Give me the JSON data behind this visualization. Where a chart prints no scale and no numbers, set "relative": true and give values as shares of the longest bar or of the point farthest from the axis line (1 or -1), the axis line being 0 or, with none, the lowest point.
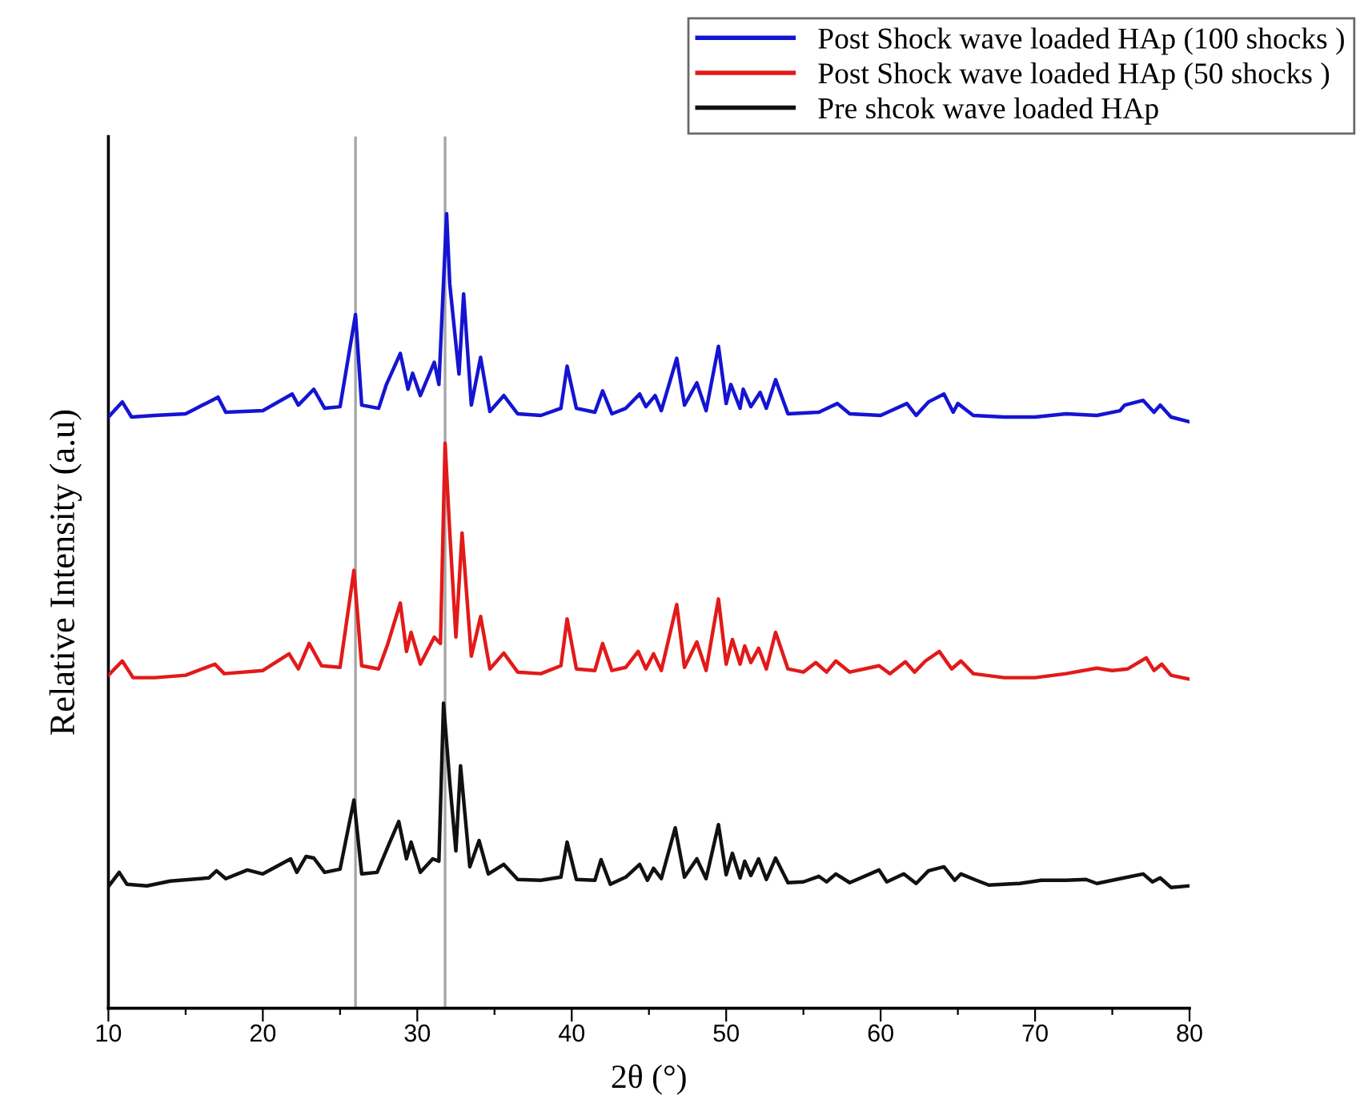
{
  "chart_data": {
    "type": "line",
    "relative": true,
    "xlabel": "2θ (°)",
    "ylabel": "Relative Intensity (a.u)",
    "xlim": [
      10,
      80
    ],
    "xticks": [
      10,
      {
        "value": 15,
        "label": null
      },
      20,
      {
        "value": 25,
        "label": null
      },
      30,
      {
        "value": 35,
        "label": null
      },
      40,
      {
        "value": 45,
        "label": null
      },
      50,
      {
        "value": 55,
        "label": null
      },
      60,
      {
        "value": 65,
        "label": null
      },
      70,
      {
        "value": 75,
        "label": null
      },
      80
    ],
    "legend": "top right",
    "grid": false,
    "marker": "none",
    "line_style": "solid",
    "ref_lines": [
      {
        "axis": "x",
        "value": 26,
        "color": "#a6a6a6"
      },
      {
        "axis": "x",
        "value": 31.8,
        "color": "#a6a6a6"
      }
    ],
    "series": [
      {
        "name": "Post Shock wave loaded HAp (100 shocks )",
        "color": "#1414d2",
        "x": [
          10,
          10.9,
          11.5,
          13,
          15,
          17.1,
          17.6,
          20,
          21.9,
          22.3,
          23.3,
          24,
          25,
          26.0,
          26.4,
          27.5,
          28.0,
          28.9,
          29.4,
          29.7,
          30.2,
          31.1,
          31.4,
          31.9,
          32.1,
          32.7,
          33.0,
          33.5,
          34.1,
          34.7,
          35.6,
          36.5,
          38,
          39.3,
          39.7,
          40.3,
          41.5,
          42.0,
          42.6,
          43.5,
          44.4,
          44.8,
          45.4,
          45.8,
          46.8,
          47.3,
          48.1,
          48.7,
          49.5,
          50,
          50.3,
          50.9,
          51.1,
          51.6,
          52.2,
          52.6,
          53.2,
          54,
          56,
          57.2,
          58,
          60,
          61.7,
          62.3,
          63.1,
          64.1,
          64.7,
          65.0,
          66,
          68,
          70,
          72,
          74,
          75.5,
          75.8,
          77.0,
          77.7,
          78.1,
          78.8,
          80
        ],
        "values": [
          0.744,
          0.763,
          0.744,
          0.746,
          0.748,
          0.769,
          0.75,
          0.752,
          0.773,
          0.759,
          0.779,
          0.755,
          0.757,
          0.873,
          0.759,
          0.755,
          0.785,
          0.824,
          0.779,
          0.799,
          0.771,
          0.813,
          0.785,
          1.0,
          0.912,
          0.798,
          0.899,
          0.759,
          0.819,
          0.751,
          0.771,
          0.748,
          0.746,
          0.755,
          0.808,
          0.755,
          0.75,
          0.777,
          0.748,
          0.755,
          0.773,
          0.757,
          0.771,
          0.752,
          0.818,
          0.759,
          0.787,
          0.752,
          0.833,
          0.761,
          0.785,
          0.755,
          0.779,
          0.757,
          0.775,
          0.755,
          0.791,
          0.748,
          0.75,
          0.761,
          0.748,
          0.746,
          0.761,
          0.746,
          0.763,
          0.773,
          0.75,
          0.761,
          0.746,
          0.744,
          0.744,
          0.748,
          0.746,
          0.752,
          0.759,
          0.765,
          0.75,
          0.759,
          0.744,
          0.738
        ]
      },
      {
        "name": "Post Shock wave loaded HAp (50 shocks )",
        "color": "#e21a1a",
        "x": [
          10,
          10.9,
          11.6,
          13,
          15,
          16.9,
          17.5,
          20,
          21.7,
          22.3,
          23.0,
          23.8,
          25,
          25.9,
          26.4,
          27.5,
          28.1,
          28.9,
          29.3,
          29.6,
          30.2,
          31.1,
          31.5,
          31.8,
          32.1,
          32.5,
          32.9,
          33.5,
          34.1,
          34.7,
          35.6,
          36.5,
          38,
          39.3,
          39.7,
          40.3,
          41.5,
          42.0,
          42.6,
          43.5,
          44.3,
          44.8,
          45.3,
          45.8,
          46.8,
          47.3,
          48.1,
          48.7,
          49.5,
          50,
          50.4,
          50.9,
          51.2,
          51.6,
          52.1,
          52.6,
          53.2,
          54,
          55,
          55.8,
          56.5,
          57.1,
          58,
          59.9,
          60.6,
          61.6,
          62.2,
          62.9,
          63.8,
          64.6,
          65.2,
          66,
          68,
          70,
          72,
          74,
          75,
          76,
          77.2,
          77.7,
          78.2,
          78.8,
          80
        ],
        "values": [
          0.419,
          0.437,
          0.416,
          0.416,
          0.419,
          0.433,
          0.421,
          0.425,
          0.446,
          0.427,
          0.459,
          0.431,
          0.429,
          0.551,
          0.431,
          0.427,
          0.459,
          0.51,
          0.449,
          0.473,
          0.433,
          0.467,
          0.459,
          0.711,
          0.6,
          0.467,
          0.598,
          0.443,
          0.493,
          0.427,
          0.447,
          0.423,
          0.421,
          0.431,
          0.49,
          0.427,
          0.425,
          0.459,
          0.425,
          0.429,
          0.449,
          0.427,
          0.446,
          0.425,
          0.508,
          0.429,
          0.461,
          0.425,
          0.515,
          0.433,
          0.464,
          0.433,
          0.456,
          0.435,
          0.453,
          0.427,
          0.473,
          0.427,
          0.423,
          0.435,
          0.423,
          0.437,
          0.423,
          0.431,
          0.421,
          0.436,
          0.423,
          0.437,
          0.449,
          0.427,
          0.437,
          0.421,
          0.416,
          0.416,
          0.421,
          0.428,
          0.425,
          0.427,
          0.441,
          0.425,
          0.433,
          0.419,
          0.414
        ]
      },
      {
        "name": "Pre shcok wave loaded HAp",
        "color": "#111111",
        "x": [
          10,
          10.7,
          11.2,
          12.5,
          14,
          16.5,
          17.0,
          17.6,
          19,
          20,
          21.8,
          22.2,
          22.8,
          23.3,
          24,
          25,
          25.9,
          26.4,
          27.4,
          28.2,
          28.8,
          29.3,
          29.6,
          30.2,
          31,
          31.4,
          31.7,
          32.1,
          32.5,
          32.8,
          33.4,
          34.0,
          34.6,
          35.6,
          36.5,
          38,
          39.3,
          39.7,
          40.3,
          41.5,
          41.9,
          42.5,
          43.5,
          44.4,
          44.9,
          45.3,
          45.8,
          46.7,
          47.3,
          48.1,
          48.7,
          49.5,
          50,
          50.4,
          50.9,
          51.2,
          51.6,
          52.1,
          52.6,
          53.2,
          54,
          55,
          56,
          56.5,
          57.1,
          58,
          59.9,
          60.4,
          61.5,
          62.3,
          63.1,
          64.1,
          64.8,
          65.2,
          66.2,
          67,
          69,
          70.4,
          72,
          73.3,
          74,
          75.5,
          77.0,
          77.6,
          78.1,
          78.8,
          80
        ],
        "values": [
          0.153,
          0.171,
          0.156,
          0.154,
          0.16,
          0.164,
          0.173,
          0.163,
          0.174,
          0.169,
          0.188,
          0.171,
          0.191,
          0.189,
          0.171,
          0.175,
          0.262,
          0.169,
          0.171,
          0.208,
          0.235,
          0.188,
          0.209,
          0.171,
          0.188,
          0.185,
          0.384,
          0.285,
          0.198,
          0.305,
          0.178,
          0.211,
          0.169,
          0.181,
          0.162,
          0.161,
          0.165,
          0.209,
          0.162,
          0.161,
          0.187,
          0.156,
          0.165,
          0.181,
          0.161,
          0.176,
          0.163,
          0.227,
          0.165,
          0.188,
          0.163,
          0.231,
          0.168,
          0.195,
          0.164,
          0.185,
          0.167,
          0.188,
          0.162,
          0.189,
          0.158,
          0.159,
          0.166,
          0.159,
          0.169,
          0.158,
          0.174,
          0.159,
          0.169,
          0.157,
          0.173,
          0.178,
          0.161,
          0.169,
          0.161,
          0.155,
          0.157,
          0.161,
          0.161,
          0.162,
          0.157,
          0.163,
          0.169,
          0.159,
          0.164,
          0.152,
          0.154
        ]
      }
    ]
  }
}
